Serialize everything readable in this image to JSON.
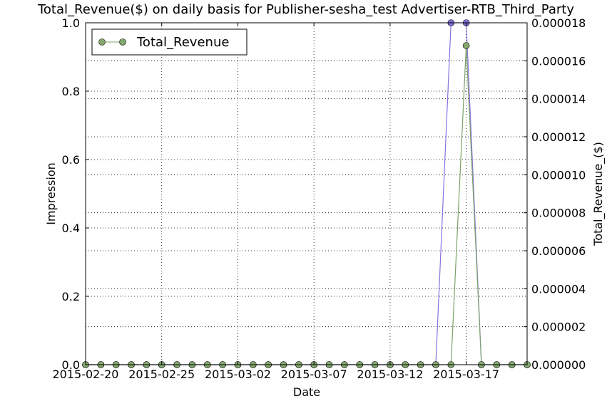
{
  "chart_data": {
    "type": "line",
    "title": "Total_Revenue($) on daily basis for Publisher-sesha_test Advertiser-RTB_Third_Party",
    "xlabel": "Date",
    "ylabel_left": "Impression",
    "ylabel_right": "Total_Revenue_($)",
    "x_tick_labels": [
      "2015-02-20",
      "2015-02-25",
      "2015-03-02",
      "2015-03-07",
      "2015-03-12",
      "2015-03-17"
    ],
    "x": [
      "2015-02-20",
      "2015-02-21",
      "2015-02-22",
      "2015-02-23",
      "2015-02-24",
      "2015-02-25",
      "2015-02-26",
      "2015-02-27",
      "2015-02-28",
      "2015-03-01",
      "2015-03-02",
      "2015-03-03",
      "2015-03-04",
      "2015-03-05",
      "2015-03-06",
      "2015-03-07",
      "2015-03-08",
      "2015-03-09",
      "2015-03-10",
      "2015-03-11",
      "2015-03-12",
      "2015-03-13",
      "2015-03-14",
      "2015-03-15",
      "2015-03-16",
      "2015-03-17",
      "2015-03-18",
      "2015-03-19",
      "2015-03-20",
      "2015-03-21"
    ],
    "y_left_range": [
      0,
      1.0
    ],
    "y_left_ticks": [
      "0.0",
      "0.2",
      "0.4",
      "0.6",
      "0.8",
      "1.0"
    ],
    "y_right_range": [
      0,
      1.8e-05
    ],
    "y_right_ticks": [
      "0.000000",
      "0.000002",
      "0.000004",
      "0.000006",
      "0.000008",
      "0.000010",
      "0.000012",
      "0.000014",
      "0.000016",
      "0.000018"
    ],
    "grid": true,
    "legend_position": "top-left",
    "series": [
      {
        "axis": "left",
        "color": "#8c6fe0",
        "marker_color": "#7b70d8",
        "values": [
          0,
          0,
          0,
          0,
          0,
          0,
          0,
          0,
          0,
          0,
          0,
          0,
          0,
          0,
          0,
          0,
          0,
          0,
          0,
          0,
          0,
          0,
          0,
          0,
          1,
          1,
          0,
          0,
          0,
          0
        ]
      },
      {
        "name": "Total_Revenue",
        "axis": "right",
        "color": "#7aa36a",
        "marker_color": "#84a96f",
        "values": [
          0,
          0,
          0,
          0,
          0,
          0,
          0,
          0,
          0,
          0,
          0,
          0,
          0,
          0,
          0,
          0,
          0,
          0,
          0,
          0,
          0,
          0,
          0,
          0,
          0,
          1.68e-05,
          0,
          0,
          0,
          0
        ]
      }
    ]
  }
}
